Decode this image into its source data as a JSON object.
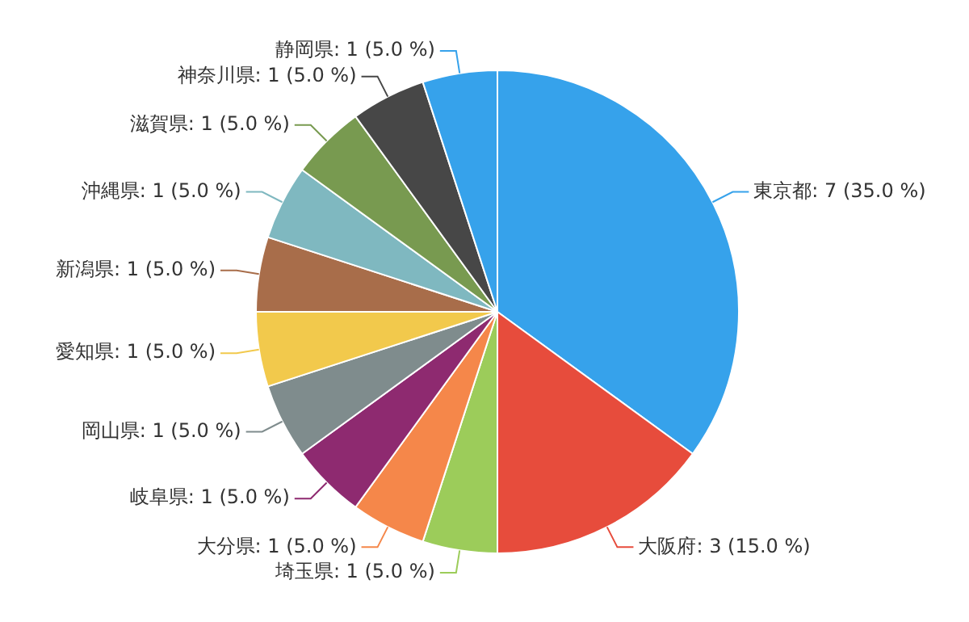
{
  "chart_data": {
    "type": "pie",
    "categories": [
      "東京都",
      "大阪府",
      "埼玉県",
      "大分県",
      "岐阜県",
      "岡山県",
      "愛知県",
      "新潟県",
      "沖縄県",
      "滋賀県",
      "神奈川県",
      "静岡県"
    ],
    "values": [
      7,
      3,
      1,
      1,
      1,
      1,
      1,
      1,
      1,
      1,
      1,
      1
    ],
    "value_labels": [
      "7 (35.0 %)",
      "3 (15.0 %)",
      "1 (5.0 %)",
      "1 (5.0 %)",
      "1 (5.0 %)",
      "1 (5.0 %)",
      "1 (5.0 %)",
      "1 (5.0 %)",
      "1 (5.0 %)",
      "1 (5.0 %)",
      "1 (5.0 %)",
      "1 (5.0 %)"
    ],
    "colors": [
      "#36a2eb",
      "#e74c3c",
      "#9ccc5a",
      "#f5874a",
      "#8e2a70",
      "#7f8c8d",
      "#f2c94c",
      "#a86d4a",
      "#7fb8c0",
      "#789a50",
      "#474747",
      "#36a2eb"
    ],
    "legend": false
  }
}
